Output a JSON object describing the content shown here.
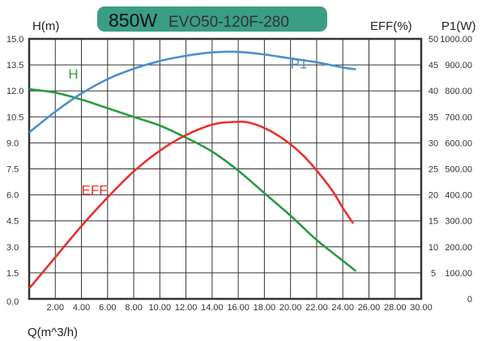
{
  "header": {
    "power": "850W",
    "model": "EVO50-120F-280",
    "badge_color": "#3a9e84"
  },
  "chart_data": {
    "type": "line",
    "title": "850W EVO50-120F-280",
    "xlabel": "Q(m^3/h)",
    "ylabel_left": "H(m)",
    "ylabel_right1": "EFF(%)",
    "ylabel_right2": "P1(W)",
    "xlim": [
      0,
      30
    ],
    "ylim_left": [
      0,
      15
    ],
    "ylim_eff": [
      0,
      50
    ],
    "ylim_p1": [
      0,
      1000
    ],
    "grid": true,
    "x_ticks": [
      "2.00",
      "4.00",
      "6.00",
      "8.00",
      "10.00",
      "12.00",
      "14.00",
      "16.00",
      "18.00",
      "20.00",
      "22.00",
      "24.00",
      "26.00",
      "28.00",
      "30.00"
    ],
    "x_tick_values": [
      2,
      4,
      6,
      8,
      10,
      12,
      14,
      16,
      18,
      20,
      22,
      24,
      26,
      28,
      30
    ],
    "y_left_ticks": [
      "0.0",
      "1.5",
      "3.0",
      "4.5",
      "6.0",
      "7.5",
      "9.0",
      "10.5",
      "12.0",
      "13.5",
      "15.0"
    ],
    "y_eff_ticks": [
      "",
      "5",
      "10",
      "15",
      "20",
      "25",
      "30",
      "35",
      "40",
      "45",
      "50"
    ],
    "y_p1_ticks": [
      "0",
      "100.00",
      "200.00",
      "300.00",
      "400.00",
      "500.00",
      "600.00",
      "700.00",
      "800.00",
      "900.00",
      "1000.00"
    ],
    "series": [
      {
        "name": "H",
        "axis": "left",
        "color": "#2a9a3e",
        "x": [
          0,
          2,
          4,
          6,
          8,
          10,
          12,
          14,
          16,
          18,
          20,
          22,
          24,
          25
        ],
        "y": [
          12.1,
          11.9,
          11.5,
          11.0,
          10.5,
          10.0,
          9.3,
          8.5,
          7.4,
          6.1,
          4.8,
          3.4,
          2.2,
          1.6
        ],
        "label_at": [
          3,
          12.7
        ]
      },
      {
        "name": "EFF",
        "axis": "eff",
        "color": "#e8302c",
        "x": [
          0,
          2,
          4,
          6,
          8,
          10,
          12,
          14,
          15.5,
          17,
          19,
          21,
          23,
          24,
          24.8
        ],
        "y": [
          2,
          8,
          14,
          19.5,
          24.5,
          28.5,
          31.5,
          33.5,
          34,
          33.8,
          31.5,
          27.5,
          21.5,
          17.5,
          14.5
        ],
        "label_at": [
          4,
          20
        ]
      },
      {
        "name": "P1",
        "axis": "p1",
        "color": "#4a8fd0",
        "x": [
          0,
          2,
          4,
          6,
          8,
          10,
          12,
          14,
          16,
          18,
          20,
          22,
          24,
          25
        ],
        "y": [
          640,
          720,
          790,
          845,
          885,
          915,
          935,
          948,
          950,
          940,
          925,
          910,
          890,
          883
        ],
        "label_at": [
          20,
          883
        ]
      }
    ]
  }
}
